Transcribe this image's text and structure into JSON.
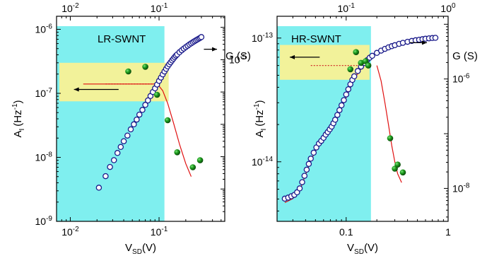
{
  "chart_data": [
    {
      "type": "scatter",
      "panel_label": "LR-SWNT",
      "xlabel": "V",
      "xlabel_sub": "SD",
      "xlabel_unit": "(V)",
      "ylabel": "A",
      "ylabel_sub": "I",
      "ylabel_unit": "(Hz",
      "ylabel_sup": "-1",
      "ylabel_close": ")",
      "y2label": "G (S)",
      "x_scale": "log",
      "y_scale": "log",
      "y2_scale": "log",
      "xlim": [
        0.007,
        0.55
      ],
      "ylim": [
        1e-09,
        1.6e-06
      ],
      "y2lim": [
        1e-10,
        0.00022
      ],
      "x_ticks": [
        {
          "v": 0.01,
          "m": "10",
          "e": "-2"
        },
        {
          "v": 0.1,
          "m": "10",
          "e": "-1"
        }
      ],
      "x_ticks_top": [
        {
          "v": 0.01,
          "m": "10",
          "e": "-2"
        },
        {
          "v": 0.1,
          "m": "10",
          "e": "-1"
        }
      ],
      "y_ticks": [
        {
          "v": 1e-09,
          "m": "10",
          "e": "-9"
        },
        {
          "v": 1e-08,
          "m": "10",
          "e": "-8"
        },
        {
          "v": 1e-07,
          "m": "10",
          "e": "-7"
        },
        {
          "v": 1e-06,
          "m": "10",
          "e": "-6"
        }
      ],
      "y2_ticks": [
        {
          "v": 1e-05,
          "m": "10",
          "e": "-5"
        }
      ],
      "shaded_region_x": [
        0.007,
        0.115
      ],
      "yellow_band_y": [
        7.5e-08,
        3e-07
      ],
      "noise_amplitude": {
        "name": "A_I",
        "axis": "left",
        "x": [
          0.045,
          0.07,
          0.095,
          0.125,
          0.16,
          0.24,
          0.29
        ],
        "y": [
          2.2e-07,
          2.6e-07,
          9.5e-08,
          3.8e-08,
          1.2e-08,
          7e-09,
          9e-09
        ]
      },
      "conductance": {
        "name": "G",
        "axis": "right",
        "x": [
          0.021,
          0.025,
          0.028,
          0.031,
          0.034,
          0.037,
          0.04,
          0.044,
          0.048,
          0.052,
          0.056,
          0.06,
          0.065,
          0.07,
          0.075,
          0.08,
          0.085,
          0.09,
          0.095,
          0.1,
          0.105,
          0.11,
          0.115,
          0.12,
          0.125,
          0.13,
          0.135,
          0.14,
          0.145,
          0.15,
          0.155,
          0.16,
          0.17,
          0.18,
          0.19,
          0.2,
          0.21,
          0.22,
          0.23,
          0.24,
          0.25,
          0.26,
          0.27,
          0.28,
          0.29,
          0.3
        ],
        "y": [
          1.1e-09,
          2.5e-09,
          4.8e-09,
          7.8e-09,
          1.3e-08,
          2e-08,
          3e-08,
          4.5e-08,
          7e-08,
          1e-07,
          1.4e-07,
          2e-07,
          2.8e-07,
          4e-07,
          5.5e-07,
          7.5e-07,
          1e-06,
          1.3e-06,
          1.7e-06,
          2.2e-06,
          2.8e-06,
          3.5e-06,
          4.3e-06,
          5.2e-06,
          6.2e-06,
          7.2e-06,
          8.3e-06,
          9.5e-06,
          1.07e-05,
          1.2e-05,
          1.33e-05,
          1.45e-05,
          1.7e-05,
          1.95e-05,
          2.2e-05,
          2.45e-05,
          2.7e-05,
          2.95e-05,
          3.2e-05,
          3.45e-05,
          3.7e-05,
          3.95e-05,
          4.2e-05,
          4.45e-05,
          4.7e-05,
          5e-05
        ]
      },
      "fit_line": {
        "axis": "left",
        "x": [
          0.014,
          0.03,
          0.05,
          0.07,
          0.09,
          0.1,
          0.11,
          0.125,
          0.145,
          0.17,
          0.2,
          0.23
        ],
        "y": [
          1.4e-07,
          1.4e-07,
          1.4e-07,
          1.4e-07,
          1.4e-07,
          1.3e-07,
          1.1e-07,
          7e-08,
          3.5e-08,
          1.6e-08,
          8e-09,
          5e-09
        ]
      },
      "dotted_line": {
        "x": [
          0.025,
          0.09
        ],
        "y": [
          1.4e-07,
          1.4e-07
        ]
      },
      "arrows": [
        {
          "dir": "left",
          "axis": "left",
          "x_from": 0.035,
          "x_to": 0.011,
          "y": 1.15e-07
        },
        {
          "dir": "right",
          "axis": "right",
          "x_from": 0.32,
          "x_to": 0.45,
          "y": 2.1e-05
        }
      ]
    },
    {
      "type": "scatter",
      "panel_label": "HR-SWNT",
      "xlabel": "V",
      "xlabel_sub": "SD",
      "xlabel_unit": "(V)",
      "ylabel": "A",
      "ylabel_sub": "I",
      "ylabel_unit": "(Hz",
      "ylabel_sup": "-1",
      "ylabel_close": ")",
      "y2label": "G (S)",
      "x_scale": "log",
      "y_scale": "log",
      "y2_scale": "log",
      "xlim": [
        0.021,
        1.0
      ],
      "ylim": [
        3.3e-15,
        1.5e-13
      ],
      "y2lim": [
        2.5e-09,
        1.4e-05
      ],
      "x_ticks": [
        {
          "v": 0.1,
          "m": "0.1",
          "e": ""
        },
        {
          "v": 1.0,
          "m": "1",
          "e": ""
        }
      ],
      "x_ticks_top": [
        {
          "v": 0.1,
          "m": "10",
          "e": "-1"
        },
        {
          "v": 1.0,
          "m": "10",
          "e": "0"
        }
      ],
      "y_ticks": [
        {
          "v": 1e-14,
          "m": "10",
          "e": "-14"
        },
        {
          "v": 1e-13,
          "m": "10",
          "e": "-13"
        }
      ],
      "y2_ticks": [
        {
          "v": 1e-08,
          "m": "10",
          "e": "-8"
        },
        {
          "v": 1e-06,
          "m": "10",
          "e": "-6"
        }
      ],
      "shaded_region_x": [
        0.021,
        0.175
      ],
      "yellow_band_y": [
        4.6e-14,
        8.8e-14
      ],
      "noise_amplitude": {
        "name": "A_I",
        "axis": "left",
        "x": [
          0.11,
          0.125,
          0.14,
          0.155,
          0.165,
          0.27,
          0.3,
          0.32,
          0.36
        ],
        "y": [
          5.6e-14,
          7.7e-14,
          6.3e-14,
          6.5e-14,
          6e-14,
          1.55e-14,
          8.8e-15,
          9.5e-15,
          8.2e-15
        ]
      },
      "conductance": {
        "name": "G",
        "axis": "right",
        "x": [
          0.025,
          0.027,
          0.029,
          0.031,
          0.033,
          0.035,
          0.037,
          0.039,
          0.041,
          0.043,
          0.045,
          0.048,
          0.051,
          0.054,
          0.057,
          0.06,
          0.063,
          0.066,
          0.069,
          0.072,
          0.075,
          0.078,
          0.082,
          0.086,
          0.09,
          0.095,
          0.1,
          0.105,
          0.11,
          0.115,
          0.12,
          0.13,
          0.14,
          0.15,
          0.16,
          0.17,
          0.18,
          0.2,
          0.22,
          0.24,
          0.26,
          0.28,
          0.3,
          0.33,
          0.36,
          0.4,
          0.44,
          0.48,
          0.52,
          0.56,
          0.6,
          0.65,
          0.7,
          0.75
        ],
        "y": [
          6.5e-09,
          6.8e-09,
          7.2e-09,
          7.6e-09,
          8.5e-09,
          1e-08,
          1.3e-08,
          1.7e-08,
          2.2e-08,
          2.8e-08,
          3.5e-08,
          4.5e-08,
          5.6e-08,
          6.6e-08,
          7.4e-08,
          8.4e-08,
          9.6e-08,
          1.07e-07,
          1.2e-07,
          1.35e-07,
          1.55e-07,
          1.8e-07,
          2.2e-07,
          2.7e-07,
          3.3e-07,
          4.1e-07,
          5.2e-07,
          6.5e-07,
          8e-07,
          9.6e-07,
          1.12e-06,
          1.4e-06,
          1.68e-06,
          1.95e-06,
          2.2e-06,
          2.45e-06,
          2.65e-06,
          3e-06,
          3.3e-06,
          3.55e-06,
          3.78e-06,
          3.98e-06,
          4.15e-06,
          4.38e-06,
          4.57e-06,
          4.78e-06,
          4.95e-06,
          5.1e-06,
          5.22e-06,
          5.33e-06,
          5.43e-06,
          5.53e-06,
          5.6e-06,
          5.65e-06
        ]
      },
      "fit_line": {
        "axis": "left",
        "x": [
          0.2,
          0.22,
          0.24,
          0.26,
          0.28,
          0.3,
          0.32,
          0.35
        ],
        "y": [
          6e-14,
          4.5e-14,
          3e-14,
          2e-14,
          1.35e-14,
          1e-14,
          8e-15,
          6.8e-15
        ]
      },
      "fit_line_g": {
        "axis": "right",
        "x": [
          0.025,
          0.03,
          0.035,
          0.04,
          0.045,
          0.05,
          0.06,
          0.07,
          0.08,
          0.09,
          0.1,
          0.12,
          0.14,
          0.16
        ],
        "y": [
          5.5e-09,
          6.5e-09,
          9e-09,
          1.8e-08,
          3.2e-08,
          4.8e-08,
          7.8e-08,
          1.15e-07,
          1.8e-07,
          2.9e-07,
          4.6e-07,
          1e-06,
          1.55e-06,
          2.1e-06
        ]
      },
      "dotted_line": {
        "x": [
          0.045,
          0.17
        ],
        "y": [
          6e-14,
          6e-14
        ]
      },
      "arrows": [
        {
          "dir": "left",
          "axis": "left",
          "x_from": 0.055,
          "x_to": 0.028,
          "y": 7e-14
        },
        {
          "dir": "right",
          "axis": "right",
          "x_from": 0.42,
          "x_to": 0.62,
          "y": 4.6e-06
        }
      ]
    }
  ]
}
